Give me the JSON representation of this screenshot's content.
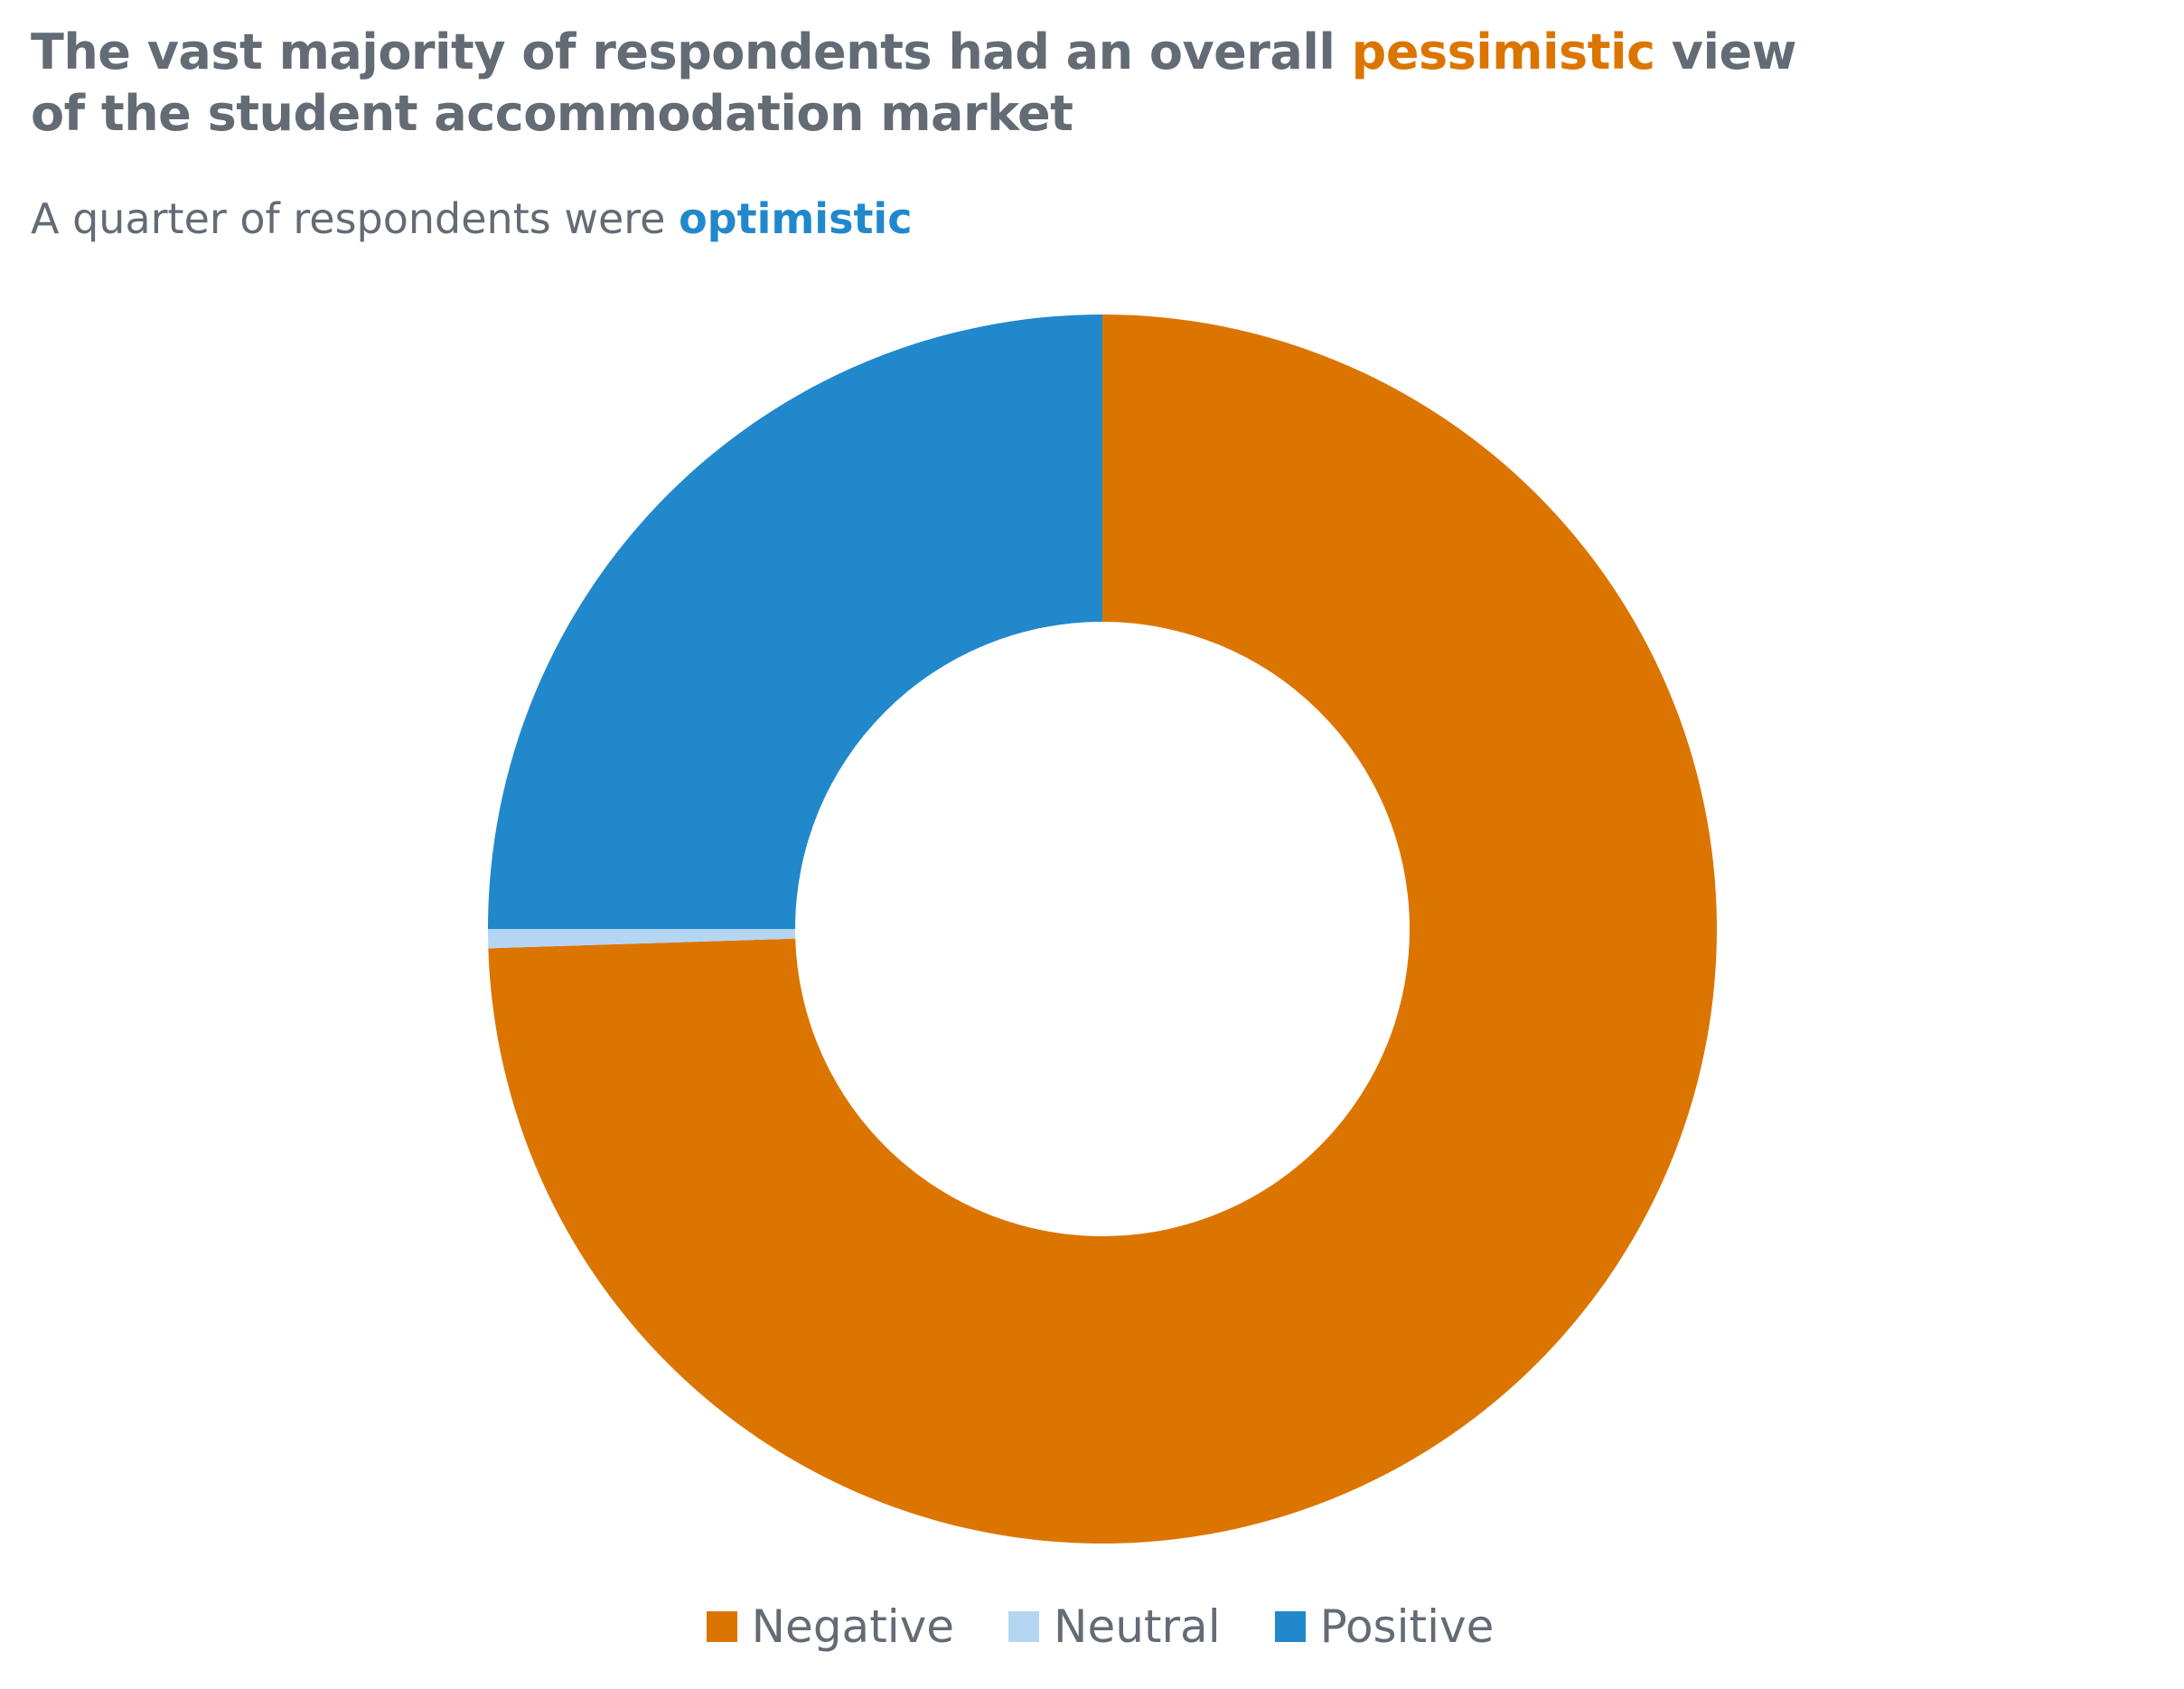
{
  "title": {
    "line1_prefix": "The vast majority of respondents had an overall ",
    "line1_accent": "pessimistic",
    "line1_suffix": " view",
    "line2": "of the student accommodation market"
  },
  "subtitle": {
    "prefix": "A quarter of respondents were ",
    "accent": "optimistic"
  },
  "colors": {
    "negative": "#db7500",
    "neutral": "#b5d6f2",
    "positive": "#2188cc",
    "text": "#636b75"
  },
  "chart_data": {
    "type": "pie",
    "variant": "donut",
    "title": "The vast majority of respondents had an overall pessimistic view of the student accommodation market",
    "subtitle": "A quarter of respondents were optimistic",
    "categories": [
      "Negative",
      "Neutral",
      "Positive"
    ],
    "values": [
      74.5,
      0.5,
      25.0
    ],
    "start_angle_deg": 0,
    "direction": "clockwise",
    "legend_position": "bottom"
  },
  "legend": {
    "items": [
      {
        "label": "Negative"
      },
      {
        "label": "Neutral"
      },
      {
        "label": "Positive"
      }
    ]
  }
}
